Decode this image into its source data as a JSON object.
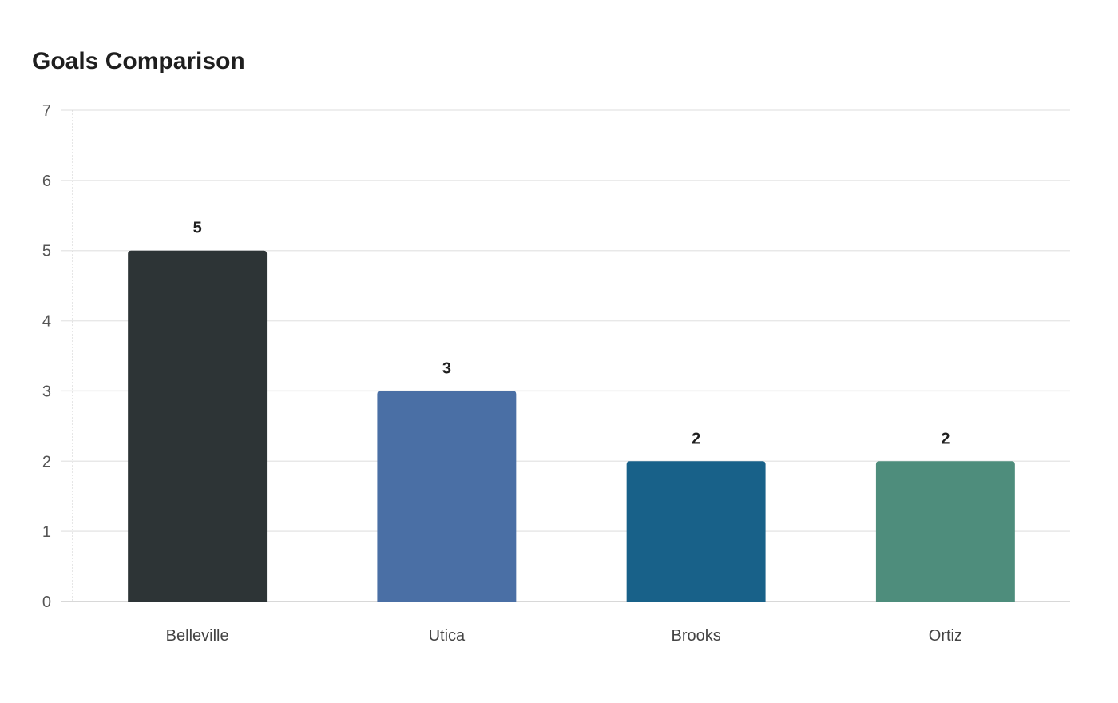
{
  "chart_data": {
    "type": "bar",
    "title": "Goals Comparison",
    "categories": [
      "Belleville",
      "Utica",
      "Brooks",
      "Ortiz"
    ],
    "values": [
      5,
      3,
      2,
      2
    ],
    "colors": [
      "#2d3436",
      "#4a6fa5",
      "#186189",
      "#4e8d7c"
    ],
    "xlabel": "",
    "ylabel": "",
    "ylim": [
      0,
      7
    ],
    "yticks": [
      "0",
      "1",
      "2",
      "3",
      "4",
      "5",
      "6",
      "7"
    ],
    "grid": true,
    "data_labels": [
      "5",
      "3",
      "2",
      "2"
    ]
  }
}
